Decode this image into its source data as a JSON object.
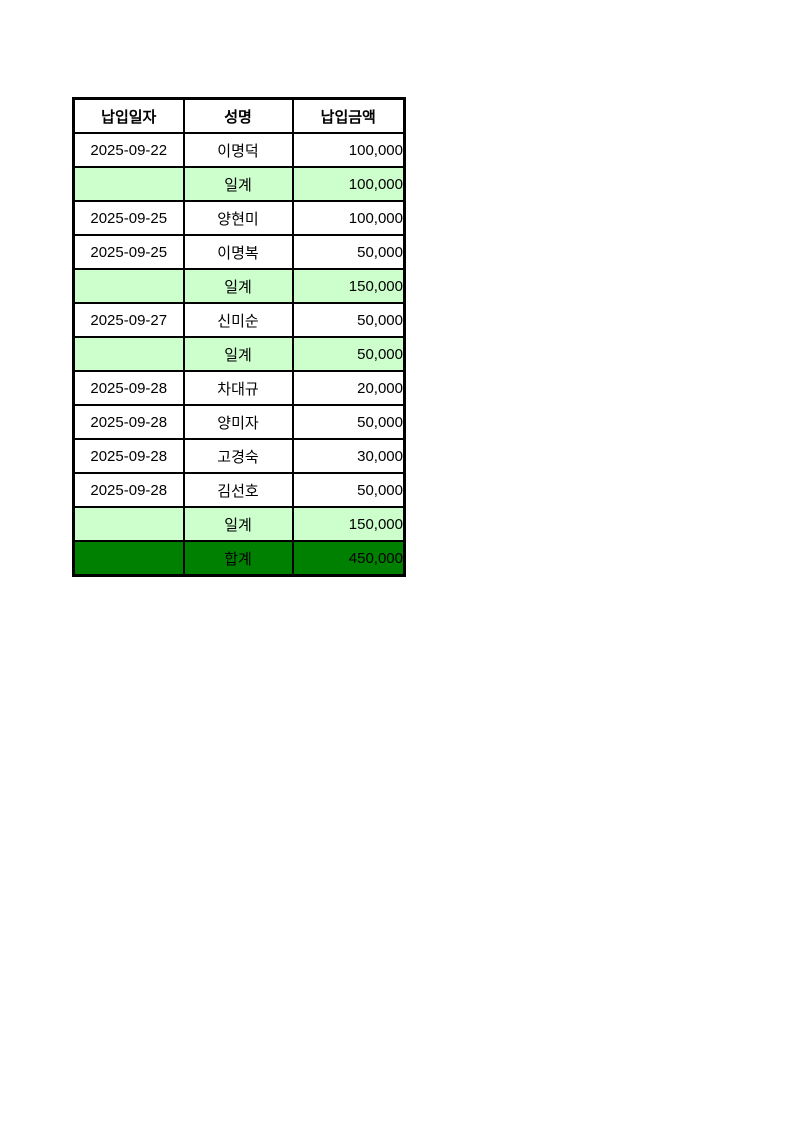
{
  "table": {
    "headers": {
      "date": "납입일자",
      "name": "성명",
      "amount": "납입금액"
    },
    "rows": [
      {
        "type": "data",
        "date": "2025-09-22",
        "name": "이명덕",
        "amount": "100,000"
      },
      {
        "type": "subtotal",
        "date": "",
        "name": "일계",
        "amount": "100,000"
      },
      {
        "type": "data",
        "date": "2025-09-25",
        "name": "양현미",
        "amount": "100,000"
      },
      {
        "type": "data",
        "date": "2025-09-25",
        "name": "이명복",
        "amount": "50,000"
      },
      {
        "type": "subtotal",
        "date": "",
        "name": "일계",
        "amount": "150,000"
      },
      {
        "type": "data",
        "date": "2025-09-27",
        "name": "신미순",
        "amount": "50,000"
      },
      {
        "type": "subtotal",
        "date": "",
        "name": "일계",
        "amount": "50,000"
      },
      {
        "type": "data",
        "date": "2025-09-28",
        "name": "차대규",
        "amount": "20,000"
      },
      {
        "type": "data",
        "date": "2025-09-28",
        "name": "양미자",
        "amount": "50,000"
      },
      {
        "type": "data",
        "date": "2025-09-28",
        "name": "고경숙",
        "amount": "30,000"
      },
      {
        "type": "data",
        "date": "2025-09-28",
        "name": "김선호",
        "amount": "50,000"
      },
      {
        "type": "subtotal",
        "date": "",
        "name": "일계",
        "amount": "150,000"
      },
      {
        "type": "total",
        "date": "",
        "name": "합계",
        "amount": "450,000"
      }
    ],
    "colors": {
      "subtotal_bg": "#ccffcc",
      "total_bg": "#008000",
      "border": "#000000",
      "text": "#000000"
    }
  }
}
